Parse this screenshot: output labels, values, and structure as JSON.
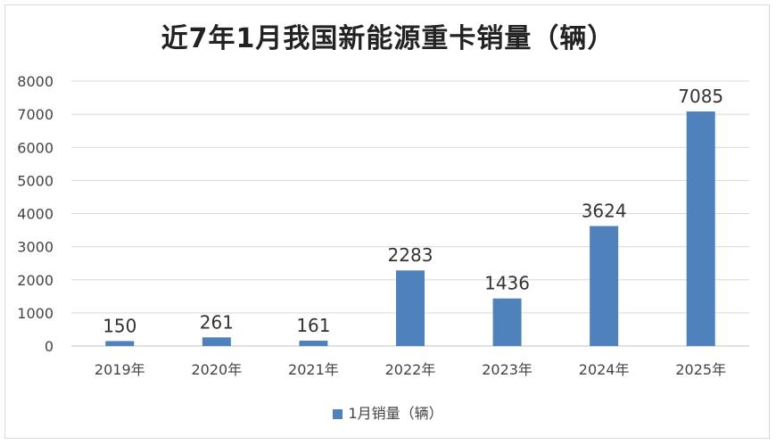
{
  "chart_data": {
    "type": "bar",
    "title": "近7年1月我国新能源重卡销量（辆）",
    "categories": [
      "2019年",
      "2020年",
      "2021年",
      "2022年",
      "2023年",
      "2024年",
      "2025年"
    ],
    "series": [
      {
        "name": "1月销量（辆）",
        "values": [
          150,
          261,
          161,
          2283,
          1436,
          3624,
          7085
        ]
      }
    ],
    "ylim": [
      0,
      8000
    ],
    "yticks": [
      0,
      1000,
      2000,
      3000,
      4000,
      5000,
      6000,
      7000,
      8000
    ],
    "grid": true,
    "legend": "bottom",
    "colors": {
      "bar": "#4f81bd",
      "grid": "#d9d9d9",
      "axis": "#bfbfbf"
    }
  }
}
